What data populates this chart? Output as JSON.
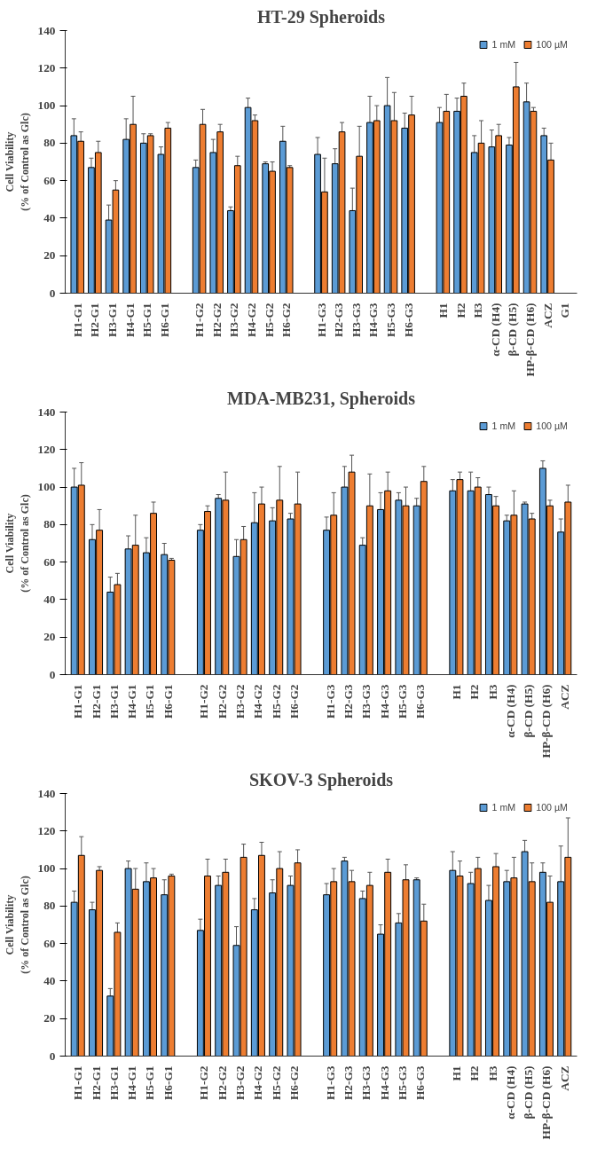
{
  "chart_data": [
    {
      "type": "bar",
      "title": "HT-29 Spheroids",
      "ylabel": "Cell Viability\n(% of Control as Glc)",
      "categories": [
        "H1-G1",
        "H2-G1",
        "H3-G1",
        "H4-G1",
        "H5-G1",
        "H6-G1",
        null,
        "H1-G2",
        "H2-G2",
        "H3-G2",
        "H4-G2",
        "H5-G2",
        "H6-G2",
        null,
        "H1-G3",
        "H2-G3",
        "H3-G3",
        "H4-G3",
        "H5-G3",
        "H6-G3",
        null,
        "H1",
        "H2",
        "H3",
        "α-CD (H4)",
        "β-CD (H5)",
        "HP-β-CD (H6)",
        "ACZ",
        "G1"
      ],
      "ylim": [
        0,
        140
      ],
      "yticks": [
        0,
        20,
        40,
        60,
        80,
        100,
        120,
        140
      ],
      "grid": false,
      "legend": "top right",
      "series": [
        {
          "name": "1 mM",
          "color": "#5b9bd5",
          "values": [
            84,
            67,
            39,
            82,
            80,
            74,
            null,
            67,
            75,
            44,
            99,
            69,
            81,
            null,
            74,
            69,
            44,
            91,
            100,
            88,
            null,
            91,
            97,
            75,
            78,
            79,
            102,
            84,
            null
          ],
          "errors": [
            9,
            5,
            8,
            11,
            5,
            4,
            null,
            4,
            7,
            2,
            5,
            1,
            8,
            null,
            9,
            8,
            12,
            14,
            15,
            8,
            null,
            8,
            7,
            9,
            9,
            4,
            10,
            4,
            null
          ]
        },
        {
          "name": "100 µM",
          "color": "#ed7d31",
          "values": [
            81,
            75,
            55,
            90,
            84,
            88,
            null,
            90,
            86,
            68,
            92,
            65,
            67,
            null,
            54,
            86,
            73,
            92,
            92,
            95,
            null,
            97,
            105,
            80,
            84,
            110,
            97,
            71,
            null
          ],
          "errors": [
            5,
            6,
            5,
            15,
            1,
            3,
            null,
            8,
            4,
            5,
            3,
            5,
            1,
            null,
            18,
            5,
            16,
            8,
            15,
            10,
            null,
            9,
            7,
            12,
            6,
            13,
            2,
            9,
            null
          ]
        }
      ]
    },
    {
      "type": "bar",
      "title": "MDA-MB231, Spheroids",
      "ylabel": "Cell Viability\n(% of Control as Glc)",
      "categories": [
        "H1-G1",
        "H2-G1",
        "H3-G1",
        "H4-G1",
        "H5-G1",
        "H6-G1",
        null,
        "H1-G2",
        "H2-G2",
        "H3-G2",
        "H4-G2",
        "H5-G2",
        "H6-G2",
        null,
        "H1-G3",
        "H2-G3",
        "H3-G3",
        "H4-G3",
        "H5-G3",
        "H6-G3",
        null,
        "H1",
        "H2",
        "H3",
        "α-CD (H4)",
        "β-CD (H5)",
        "HP-β-CD (H6)",
        "ACZ"
      ],
      "ylim": [
        0,
        140
      ],
      "yticks": [
        0,
        20,
        40,
        60,
        80,
        100,
        120,
        140
      ],
      "grid": false,
      "legend": "top right",
      "series": [
        {
          "name": "1 mM",
          "color": "#5b9bd5",
          "values": [
            100,
            72,
            44,
            67,
            65,
            64,
            null,
            77,
            94,
            63,
            81,
            82,
            83,
            null,
            77,
            100,
            69,
            88,
            93,
            90,
            null,
            98,
            98,
            96,
            82,
            91,
            110,
            76
          ],
          "errors": [
            10,
            8,
            8,
            7,
            8,
            6,
            null,
            3,
            2,
            9,
            16,
            7,
            3,
            null,
            7,
            11,
            4,
            9,
            4,
            4,
            null,
            6,
            10,
            4,
            3,
            1,
            4,
            7
          ]
        },
        {
          "name": "100 µM",
          "color": "#ed7d31",
          "values": [
            101,
            77,
            48,
            69,
            86,
            61,
            null,
            87,
            93,
            72,
            91,
            93,
            91,
            null,
            85,
            108,
            90,
            98,
            90,
            103,
            null,
            104,
            100,
            90,
            85,
            83,
            90,
            92
          ],
          "errors": [
            12,
            11,
            6,
            16,
            6,
            1,
            null,
            3,
            15,
            7,
            9,
            18,
            17,
            null,
            12,
            9,
            17,
            10,
            10,
            8,
            null,
            4,
            5,
            5,
            13,
            3,
            3,
            9
          ]
        }
      ]
    },
    {
      "type": "bar",
      "title": "SKOV-3 Spheroids",
      "ylabel": "Cell Viability\n(% of Control as Glc)",
      "categories": [
        "H1-G1",
        "H2-G1",
        "H3-G1",
        "H4-G1",
        "H5-G1",
        "H6-G1",
        null,
        "H1-G2",
        "H2-G2",
        "H3-G2",
        "H4-G2",
        "H5-G2",
        "H6-G2",
        null,
        "H1-G3",
        "H2-G3",
        "H3-G3",
        "H4-G3",
        "H5-G3",
        "H6-G3",
        null,
        "H1",
        "H2",
        "H3",
        "α-CD (H4)",
        "β-CD (H5)",
        "HP-β-CD (H6)",
        "ACZ"
      ],
      "ylim": [
        0,
        140
      ],
      "yticks": [
        0,
        20,
        40,
        60,
        80,
        100,
        120,
        140
      ],
      "grid": false,
      "legend": "top right",
      "series": [
        {
          "name": "1 mM",
          "color": "#5b9bd5",
          "values": [
            82,
            78,
            32,
            100,
            93,
            86,
            null,
            67,
            91,
            59,
            78,
            87,
            91,
            null,
            86,
            104,
            84,
            65,
            71,
            94,
            null,
            99,
            92,
            83,
            93,
            109,
            98,
            93
          ],
          "errors": [
            6,
            4,
            4,
            4,
            10,
            8,
            null,
            6,
            5,
            10,
            6,
            7,
            5,
            null,
            6,
            2,
            4,
            5,
            5,
            1,
            null,
            10,
            6,
            8,
            6,
            6,
            5,
            19
          ]
        },
        {
          "name": "100 µM",
          "color": "#ed7d31",
          "values": [
            107,
            99,
            66,
            89,
            95,
            96,
            null,
            96,
            98,
            106,
            107,
            100,
            103,
            null,
            93,
            93,
            91,
            98,
            94,
            72,
            null,
            96,
            100,
            101,
            95,
            93,
            82,
            106
          ],
          "errors": [
            10,
            2,
            5,
            11,
            5,
            1,
            null,
            9,
            7,
            7,
            7,
            9,
            7,
            null,
            7,
            6,
            7,
            7,
            8,
            9,
            null,
            8,
            6,
            7,
            11,
            10,
            14,
            21
          ]
        }
      ]
    }
  ]
}
